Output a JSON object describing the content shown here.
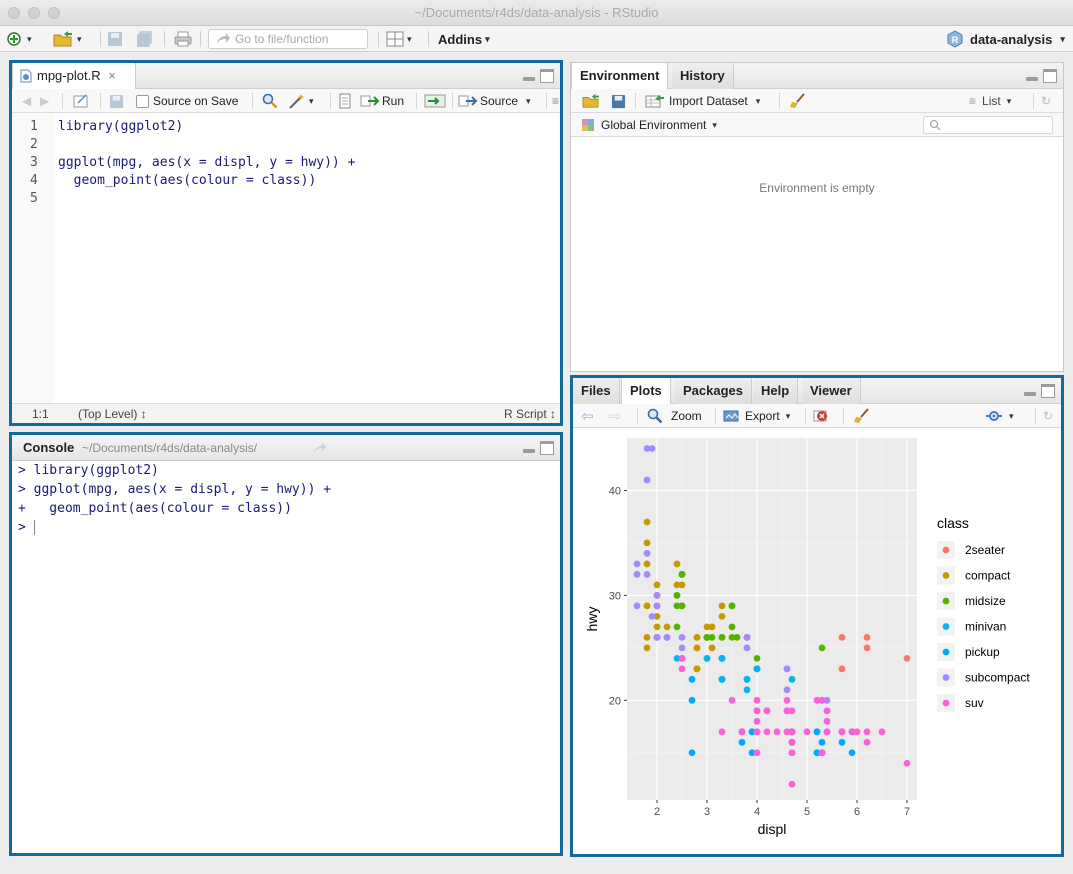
{
  "window": {
    "title": "~/Documents/r4ds/data-analysis - RStudio"
  },
  "toolbar": {
    "goto_placeholder": "Go to file/function",
    "addins_label": "Addins",
    "project_label": "data-analysis"
  },
  "editor": {
    "tab_label": "mpg-plot.R",
    "source_on_save_label": "Source on Save",
    "run_label": "Run",
    "source_label": "Source",
    "lines": [
      {
        "num": "1",
        "code": "library(ggplot2)"
      },
      {
        "num": "2",
        "code": ""
      },
      {
        "num": "3",
        "code": "ggplot(mpg, aes(x = displ, y = hwy)) +"
      },
      {
        "num": "4",
        "code": "  geom_point(aes(colour = class))"
      },
      {
        "num": "5",
        "code": ""
      }
    ],
    "status_position": "1:1",
    "status_scope": "(Top Level) ↕",
    "status_type": "R Script ↕"
  },
  "console": {
    "tab_label": "Console",
    "path": "~/Documents/r4ds/data-analysis/",
    "lines": [
      {
        "prompt": ">",
        "text": "library(ggplot2)"
      },
      {
        "prompt": ">",
        "text": "ggplot(mpg, aes(x = displ, y = hwy)) +"
      },
      {
        "prompt": "+",
        "text": "  geom_point(aes(colour = class))"
      },
      {
        "prompt": ">",
        "text": ""
      }
    ]
  },
  "environment": {
    "tabs": [
      "Environment",
      "History"
    ],
    "import_label": "Import Dataset",
    "list_label": "List",
    "scope_label": "Global Environment",
    "empty_text": "Environment is empty"
  },
  "viewer": {
    "tabs": [
      "Files",
      "Plots",
      "Packages",
      "Help",
      "Viewer"
    ],
    "zoom_label": "Zoom",
    "export_label": "Export"
  },
  "chart_data": {
    "type": "scatter",
    "title": "",
    "xlabel": "displ",
    "ylabel": "hwy",
    "xlim": [
      1.4,
      7.2
    ],
    "ylim": [
      10.5,
      45
    ],
    "xticks": [
      2,
      3,
      4,
      5,
      6,
      7
    ],
    "yticks": [
      20,
      30,
      40
    ],
    "grid": true,
    "legend_title": "class",
    "legend_position": "right",
    "series": [
      {
        "name": "2seater",
        "color": "#F8766D",
        "points": [
          [
            5.7,
            26
          ],
          [
            5.7,
            23
          ],
          [
            6.2,
            26
          ],
          [
            6.2,
            25
          ],
          [
            7.0,
            24
          ]
        ]
      },
      {
        "name": "compact",
        "color": "#C49A00",
        "points": [
          [
            1.8,
            29
          ],
          [
            1.8,
            29
          ],
          [
            2.0,
            31
          ],
          [
            2.0,
            30
          ],
          [
            2.8,
            26
          ],
          [
            2.8,
            26
          ],
          [
            3.1,
            27
          ],
          [
            1.8,
            26
          ],
          [
            1.8,
            25
          ],
          [
            2.0,
            28
          ],
          [
            2.0,
            27
          ],
          [
            2.8,
            25
          ],
          [
            2.8,
            25
          ],
          [
            3.1,
            25
          ],
          [
            3.1,
            25
          ],
          [
            2.2,
            26
          ],
          [
            2.2,
            27
          ],
          [
            2.4,
            30
          ],
          [
            2.4,
            33
          ],
          [
            3.0,
            26
          ],
          [
            3.0,
            27
          ],
          [
            3.3,
            29
          ],
          [
            1.8,
            35
          ],
          [
            1.8,
            37
          ],
          [
            1.8,
            33
          ],
          [
            2.0,
            29
          ],
          [
            2.0,
            26
          ],
          [
            2.5,
            29
          ],
          [
            2.5,
            29
          ],
          [
            2.5,
            31
          ],
          [
            2.8,
            23
          ],
          [
            2.8,
            23
          ],
          [
            3.3,
            28
          ],
          [
            2.4,
            31
          ]
        ]
      },
      {
        "name": "midsize",
        "color": "#53B400",
        "points": [
          [
            2.4,
            27
          ],
          [
            2.4,
            30
          ],
          [
            3.1,
            26
          ],
          [
            3.5,
            29
          ],
          [
            3.6,
            26
          ],
          [
            2.4,
            29
          ],
          [
            3.0,
            26
          ],
          [
            3.3,
            26
          ],
          [
            3.3,
            24
          ],
          [
            3.3,
            24
          ],
          [
            3.3,
            22
          ],
          [
            3.8,
            26
          ],
          [
            3.8,
            26
          ],
          [
            4.0,
            23
          ],
          [
            2.5,
            32
          ],
          [
            2.5,
            32
          ],
          [
            2.5,
            32
          ],
          [
            2.5,
            29
          ],
          [
            3.5,
            29
          ],
          [
            3.5,
            27
          ],
          [
            3.0,
            24
          ],
          [
            3.0,
            26
          ],
          [
            3.5,
            26
          ],
          [
            3.3,
            26
          ],
          [
            3.0,
            26
          ],
          [
            4.0,
            24
          ],
          [
            4.0,
            23
          ],
          [
            5.3,
            25
          ]
        ]
      },
      {
        "name": "minivan",
        "color": "#00B6EB",
        "points": [
          [
            2.4,
            24
          ],
          [
            3.0,
            24
          ],
          [
            3.3,
            22
          ],
          [
            3.3,
            22
          ],
          [
            3.3,
            24
          ],
          [
            3.3,
            24
          ],
          [
            3.8,
            22
          ],
          [
            3.8,
            21
          ],
          [
            3.8,
            22
          ],
          [
            4.0,
            23
          ],
          [
            4.7,
            22
          ]
        ]
      },
      {
        "name": "pickup",
        "color": "#00A9FF",
        "points": [
          [
            2.7,
            20
          ],
          [
            2.7,
            22
          ],
          [
            2.7,
            15
          ],
          [
            3.9,
            17
          ],
          [
            3.9,
            17
          ],
          [
            4.7,
            17
          ],
          [
            4.7,
            16
          ],
          [
            4.7,
            15
          ],
          [
            5.2,
            17
          ],
          [
            5.2,
            15
          ],
          [
            5.7,
            16
          ],
          [
            5.9,
            15
          ],
          [
            3.7,
            16
          ],
          [
            3.7,
            17
          ],
          [
            3.9,
            15
          ],
          [
            4.7,
            17
          ],
          [
            4.7,
            16
          ],
          [
            5.2,
            17
          ],
          [
            5.2,
            15
          ],
          [
            5.7,
            17
          ],
          [
            5.9,
            17
          ],
          [
            5.3,
            15
          ],
          [
            5.3,
            16
          ],
          [
            5.3,
            15
          ],
          [
            5.7,
            17
          ]
        ]
      },
      {
        "name": "subcompact",
        "color": "#A58AFF",
        "points": [
          [
            1.8,
            44
          ],
          [
            1.8,
            41
          ],
          [
            1.6,
            33
          ],
          [
            1.6,
            32
          ],
          [
            1.6,
            32
          ],
          [
            1.6,
            29
          ],
          [
            2.0,
            29
          ],
          [
            2.0,
            26
          ],
          [
            2.0,
            26
          ],
          [
            1.8,
            32
          ],
          [
            1.8,
            34
          ],
          [
            2.0,
            29
          ],
          [
            2.0,
            26
          ],
          [
            2.5,
            25
          ],
          [
            2.5,
            24
          ],
          [
            3.8,
            26
          ],
          [
            3.8,
            25
          ],
          [
            4.6,
            21
          ],
          [
            4.6,
            23
          ],
          [
            5.4,
            20
          ],
          [
            3.8,
            25
          ],
          [
            4.6,
            23
          ],
          [
            2.2,
            26
          ],
          [
            2.2,
            26
          ],
          [
            2.5,
            26
          ],
          [
            1.9,
            28
          ],
          [
            2.0,
            30
          ],
          [
            2.0,
            29
          ],
          [
            1.9,
            44
          ],
          [
            2.0,
            29
          ]
        ]
      },
      {
        "name": "suv",
        "color": "#FB61D7",
        "points": [
          [
            5.3,
            20
          ],
          [
            5.3,
            15
          ],
          [
            5.3,
            20
          ],
          [
            5.7,
            17
          ],
          [
            6.0,
            17
          ],
          [
            5.7,
            17
          ],
          [
            5.7,
            17
          ],
          [
            6.2,
            16
          ],
          [
            6.2,
            17
          ],
          [
            7.0,
            14
          ],
          [
            5.3,
            15
          ],
          [
            5.3,
            15
          ],
          [
            4.7,
            12
          ],
          [
            4.7,
            16
          ],
          [
            4.7,
            17
          ],
          [
            4.7,
            19
          ],
          [
            5.2,
            20
          ],
          [
            5.9,
            17
          ],
          [
            4.7,
            15
          ],
          [
            5.7,
            17
          ],
          [
            5.4,
            17
          ],
          [
            5.4,
            18
          ],
          [
            5.4,
            17
          ],
          [
            4.0,
            19
          ],
          [
            4.0,
            19
          ],
          [
            4.6,
            19
          ],
          [
            5.0,
            17
          ],
          [
            4.2,
            19
          ],
          [
            4.2,
            19
          ],
          [
            4.6,
            19
          ],
          [
            5.4,
            19
          ],
          [
            4.6,
            17
          ],
          [
            4.0,
            18
          ],
          [
            4.0,
            17
          ],
          [
            4.0,
            17
          ],
          [
            4.7,
            17
          ],
          [
            4.7,
            17
          ],
          [
            4.2,
            17
          ],
          [
            3.7,
            17
          ],
          [
            3.3,
            17
          ],
          [
            4.0,
            15
          ],
          [
            2.5,
            24
          ],
          [
            2.5,
            24
          ],
          [
            3.5,
            20
          ],
          [
            2.5,
            23
          ],
          [
            6.5,
            17
          ],
          [
            4.4,
            17
          ],
          [
            5.4,
            19
          ],
          [
            4.0,
            20
          ],
          [
            4.6,
            20
          ]
        ]
      }
    ]
  }
}
